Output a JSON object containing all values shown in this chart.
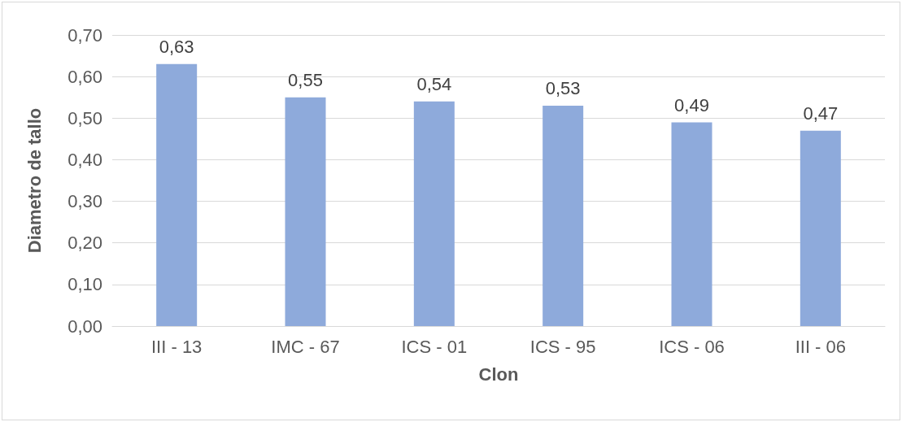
{
  "chart_data": {
    "type": "bar",
    "xlabel": "Clon",
    "ylabel": "Diametro de tallo",
    "categories": [
      "III - 13",
      "IMC - 67",
      "ICS - 01",
      "ICS - 95",
      "ICS - 06",
      "III - 06"
    ],
    "values": [
      0.63,
      0.55,
      0.54,
      0.53,
      0.49,
      0.47
    ],
    "value_labels": [
      "0,63",
      "0,55",
      "0,54",
      "0,53",
      "0,49",
      "0,47"
    ],
    "color": "#8eaadb",
    "ylim": [
      0,
      0.7
    ],
    "yticks": [
      {
        "value": 0,
        "label": "0,00"
      },
      {
        "value": 0.1,
        "label": "0,10"
      },
      {
        "value": 0.2,
        "label": "0,20"
      },
      {
        "value": 0.3,
        "label": "0,30"
      },
      {
        "value": 0.4,
        "label": "0,40"
      },
      {
        "value": 0.5,
        "label": "0,50"
      },
      {
        "value": 0.6,
        "label": "0,60"
      },
      {
        "value": 0.7,
        "label": "0,70"
      }
    ],
    "grid": "y"
  }
}
